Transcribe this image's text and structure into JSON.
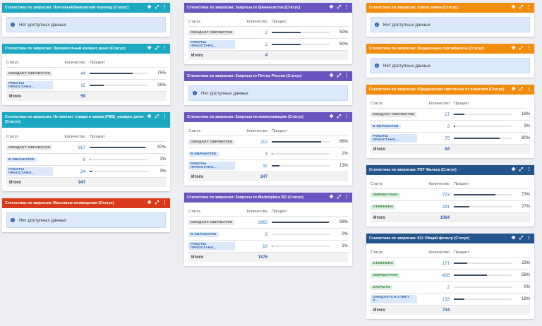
{
  "headers": {
    "status": "Статус",
    "qty": "Количество",
    "pct": "Процент",
    "total": "Итого"
  },
  "nodata": "Нет доступных данных",
  "colors": {
    "teal": "#1ba8c0",
    "purple": "#6a55c0",
    "orange": "#f28c0c",
    "red": "#d83a1b",
    "navy": "#24548c",
    "bar": "#3d4c63"
  },
  "icons": [
    "move-icon",
    "expand-icon",
    "more-icon",
    "info-icon"
  ],
  "cards": {
    "c0": {
      "title": "Статистика по запросам: Почтовый/банковский перевод (Статус)"
    },
    "c1": {
      "title": "Статистика по запросам: Приоритетный возврат денег (Статус)",
      "total": "59",
      "rows": [
        {
          "status": "ОЖИДАЕТ ОБРАБОТКИ",
          "qty": "44",
          "pct": "75%",
          "value": 75
        },
        {
          "status": "РАБОТЫ ПРИОСТАНО...",
          "qty": "15",
          "pct": "25%",
          "value": 25
        }
      ]
    },
    "c2": {
      "title": "Статистика по запросам: Не хватает товара в заказе (FBS)_возврат денег (Статус)",
      "total": "947",
      "rows": [
        {
          "status": "ОЖИДАЕТ ОБРАБОТКИ",
          "qty": "917",
          "pct": "97%",
          "value": 97
        },
        {
          "status": "В ОБРАБОТКЕ",
          "qty": "6",
          "pct": "1%",
          "value": 1
        },
        {
          "status": "РАБОТЫ ПРИОСТАНО...",
          "qty": "24",
          "pct": "3%",
          "value": 3
        }
      ]
    },
    "c3": {
      "title": "Статистика по запросам: Массовые оповещения (Статус)"
    },
    "c4": {
      "title": "Статистика по запросам: Запросы от финансистов (Статус)",
      "total": "4",
      "rows": [
        {
          "status": "ОЖИДАЕТ ОБРАБОТКИ",
          "qty": "2",
          "pct": "50%",
          "value": 50
        },
        {
          "status": "РАБОТЫ ПРИОСТАНО...",
          "qty": "2",
          "pct": "50%",
          "value": 50
        }
      ]
    },
    "c5": {
      "title": "Статистика по запросам: Запросы от Почты России (Статус)"
    },
    "c6": {
      "title": "Статистика по запросам: Запросы на коммуникацию (Статус)",
      "total": "247",
      "rows": [
        {
          "status": "ОЖИДАЕТ ОБРАБОТКИ",
          "qty": "212",
          "pct": "86%",
          "value": 86
        },
        {
          "status": "В ОБРАБОТКЕ",
          "qty": "3",
          "pct": "1%",
          "value": 1
        },
        {
          "status": "РАБОТЫ ПРИОСТАНО...",
          "qty": "32",
          "pct": "13%",
          "value": 13
        }
      ]
    },
    "c7": {
      "title": "Статистика по запросам: Запросы от Marketplace БО (Статус)",
      "total": "1875",
      "rows": [
        {
          "status": "ОЖИДАЕТ ОБРАБОТКИ",
          "qty": "1862",
          "pct": "99%",
          "value": 99
        },
        {
          "status": "В ОБРАБОТКЕ",
          "qty": "3",
          "pct": "0%",
          "value": 0
        },
        {
          "status": "РАБОТЫ ПРИОСТАНО...",
          "qty": "10",
          "pct": "1%",
          "value": 1
        }
      ]
    },
    "c8": {
      "title": "Статистика по запросам: Хэппи линии (Статус)"
    },
    "c9": {
      "title": "Статистика по запросам: Подарочные сертификаты (Статус)"
    },
    "c10": {
      "title": "Статистика по запросам: Юридические претензии от клиентов (Статус)",
      "total": "94",
      "rows": [
        {
          "status": "ОЖИДАЕТ ОБРАБОТКИ",
          "qty": "17",
          "pct": "18%",
          "value": 18
        },
        {
          "status": "В ОБРАБОТКЕ",
          "qty": "2",
          "pct": "2%",
          "value": 2
        },
        {
          "status": "РАБОТЫ ПРИОСТАНО...",
          "qty": "75",
          "pct": "80%",
          "value": 80
        }
      ]
    },
    "c11": {
      "title": "Статистика по запросам: PST Фильтр (Статус)",
      "total": "1064",
      "rows": [
        {
          "status": "ОБРАБОТАНО",
          "qty": "773",
          "pct": "73%",
          "value": 73
        },
        {
          "status": "ОТМЕНЕНО",
          "qty": "291",
          "pct": "27%",
          "value": 27
        }
      ]
    },
    "c12": {
      "title": "Статистика по запросам: 911 Общий фильтр (Статус)",
      "total": "734",
      "rows": [
        {
          "status": "ОТМЕНЕНО",
          "qty": "171",
          "pct": "23%",
          "value": 23
        },
        {
          "status": "ОБРАБОТАНО",
          "qty": "428",
          "pct": "58%",
          "value": 58
        },
        {
          "status": "ЗАКРЫТО",
          "qty": "2",
          "pct": "0%",
          "value": 0
        },
        {
          "status": "ОЖИДАЕТСЯ ОТВЕТ П...",
          "qty": "133",
          "pct": "18%",
          "value": 18
        }
      ]
    }
  }
}
